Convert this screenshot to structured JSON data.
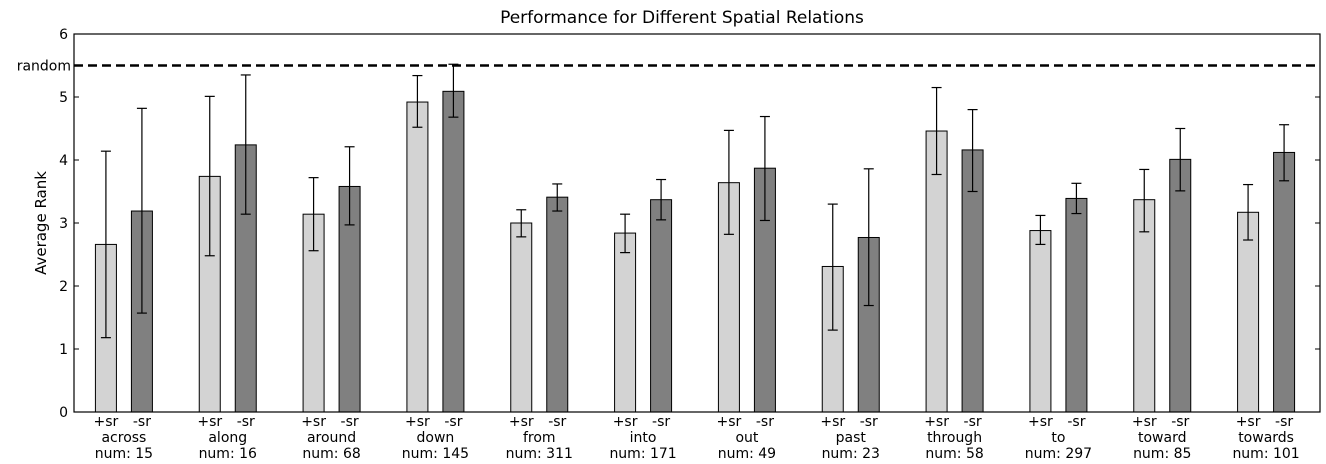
{
  "chart_data": {
    "type": "bar",
    "title": "Performance for Different Spatial Relations",
    "ylabel": "Average Rank",
    "xlabel": "",
    "ylim": [
      0,
      6
    ],
    "yticks": [
      0,
      1,
      2,
      3,
      4,
      5,
      6
    ],
    "grid": false,
    "reference_line": {
      "label": "random",
      "value": 5.5,
      "style": "dashed"
    },
    "bar_labels": [
      "+sr",
      "-sr"
    ],
    "categories": [
      {
        "name": "across",
        "num_label": "num: 15"
      },
      {
        "name": "along",
        "num_label": "num: 16"
      },
      {
        "name": "around",
        "num_label": "num: 68"
      },
      {
        "name": "down",
        "num_label": "num: 145"
      },
      {
        "name": "from",
        "num_label": "num: 311"
      },
      {
        "name": "into",
        "num_label": "num: 171"
      },
      {
        "name": "out",
        "num_label": "num: 49"
      },
      {
        "name": "past",
        "num_label": "num: 23"
      },
      {
        "name": "through",
        "num_label": "num: 58"
      },
      {
        "name": "to",
        "num_label": "num: 297"
      },
      {
        "name": "toward",
        "num_label": "num: 85"
      },
      {
        "name": "towards",
        "num_label": "num: 101"
      }
    ],
    "series": [
      {
        "name": "+sr",
        "color": "#d3d3d3",
        "values": [
          2.66,
          3.74,
          3.14,
          4.92,
          3.0,
          2.84,
          3.64,
          2.31,
          4.46,
          2.88,
          3.37,
          3.17
        ],
        "err_low": [
          1.18,
          2.48,
          2.56,
          4.52,
          2.78,
          2.53,
          2.82,
          1.3,
          3.77,
          2.66,
          2.86,
          2.73
        ],
        "err_high": [
          4.14,
          5.01,
          3.72,
          5.34,
          3.21,
          3.14,
          4.47,
          3.3,
          5.15,
          3.12,
          3.85,
          3.61
        ]
      },
      {
        "name": "-sr",
        "color": "#808080",
        "values": [
          3.19,
          4.24,
          3.58,
          5.09,
          3.41,
          3.37,
          3.87,
          2.77,
          4.16,
          3.39,
          4.01,
          4.12
        ],
        "err_low": [
          1.57,
          3.14,
          2.97,
          4.68,
          3.19,
          3.05,
          3.04,
          1.69,
          3.5,
          3.15,
          3.51,
          3.67
        ],
        "err_high": [
          4.82,
          5.35,
          4.21,
          5.52,
          3.62,
          3.69,
          4.69,
          3.86,
          4.8,
          3.63,
          4.5,
          4.56
        ]
      }
    ]
  }
}
